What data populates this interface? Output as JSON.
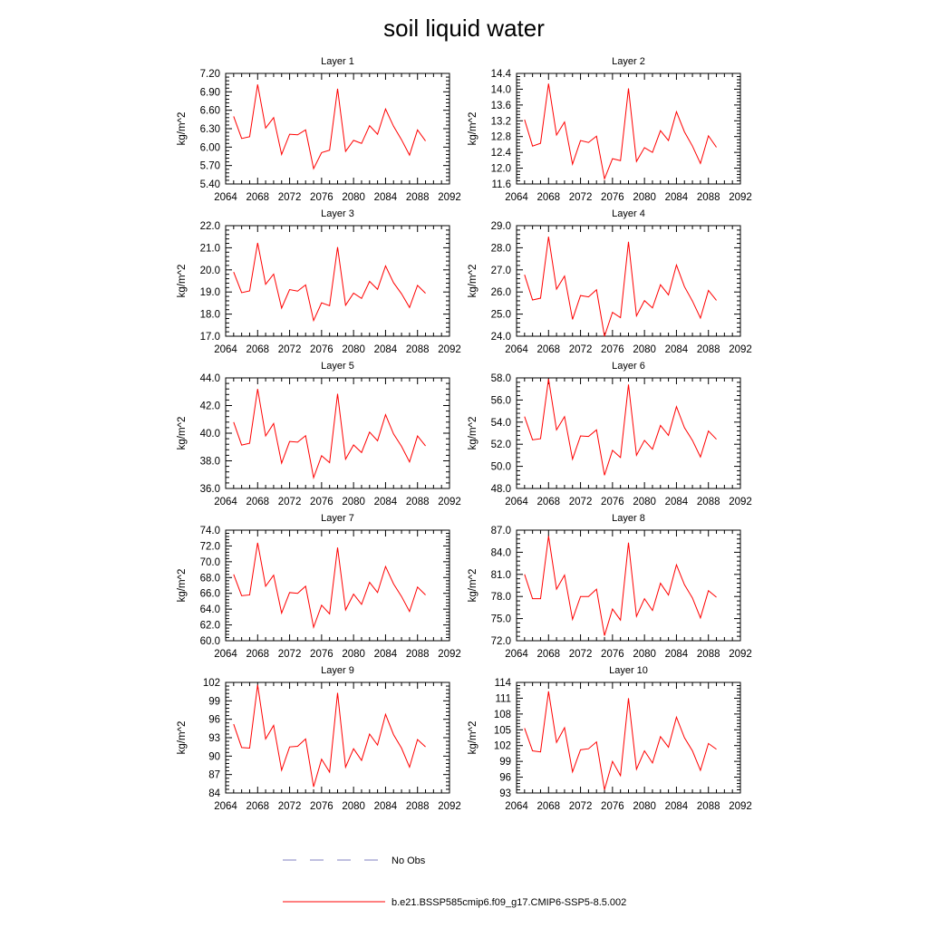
{
  "title": "soil liquid water",
  "legend": {
    "obs": {
      "label": "No Obs",
      "color": "#8080c0"
    },
    "model": {
      "label": "b.e21.BSSP585cmip6.f09_g17.CMIP6-SSP5-8.5.002",
      "color": "#ff0000"
    }
  },
  "chart_data": [
    {
      "type": "line",
      "title": "Layer 1",
      "ylabel": "kg/m^2",
      "xlim": [
        2064,
        2092
      ],
      "xticks": [
        "2064",
        "2068",
        "2072",
        "2076",
        "2080",
        "2084",
        "2088",
        "2092"
      ],
      "ylim": [
        5.4,
        7.2
      ],
      "yticks": [
        "5.40",
        "5.70",
        "6.00",
        "6.30",
        "6.60",
        "6.90",
        "7.20"
      ],
      "series": [
        {
          "color": "#ff0000",
          "x": [
            2065,
            2066,
            2067,
            2068,
            2069,
            2070,
            2071,
            2072,
            2073,
            2074,
            2075,
            2076,
            2077,
            2078,
            2079,
            2080,
            2081,
            2082,
            2083,
            2084,
            2085,
            2086,
            2087,
            2088,
            2089
          ],
          "y": [
            6.5,
            6.14,
            6.17,
            7.02,
            6.31,
            6.48,
            5.88,
            6.21,
            6.2,
            6.28,
            5.65,
            5.91,
            5.95,
            6.95,
            5.93,
            6.11,
            6.06,
            6.35,
            6.21,
            6.62,
            6.34,
            6.12,
            5.87,
            6.28,
            6.1
          ]
        }
      ]
    },
    {
      "type": "line",
      "title": "Layer 2",
      "ylabel": "kg/m^2",
      "xlim": [
        2064,
        2092
      ],
      "xticks": [
        "2064",
        "2068",
        "2072",
        "2076",
        "2080",
        "2084",
        "2088",
        "2092"
      ],
      "ylim": [
        11.6,
        14.4
      ],
      "yticks": [
        "11.6",
        "12.0",
        "12.4",
        "12.8",
        "13.2",
        "13.6",
        "14.0",
        "14.4"
      ],
      "series": [
        {
          "color": "#ff0000",
          "x": [
            2065,
            2066,
            2067,
            2068,
            2069,
            2070,
            2071,
            2072,
            2073,
            2074,
            2075,
            2076,
            2077,
            2078,
            2079,
            2080,
            2081,
            2082,
            2083,
            2084,
            2085,
            2086,
            2087,
            2088,
            2089
          ],
          "y": [
            13.23,
            12.56,
            12.63,
            14.14,
            12.84,
            13.17,
            12.1,
            12.7,
            12.65,
            12.81,
            11.73,
            12.24,
            12.19,
            14.02,
            12.17,
            12.52,
            12.4,
            12.95,
            12.7,
            13.43,
            12.92,
            12.56,
            12.12,
            12.82,
            12.53
          ]
        }
      ]
    },
    {
      "type": "line",
      "title": "Layer 3",
      "ylabel": "kg/m^2",
      "xlim": [
        2064,
        2092
      ],
      "xticks": [
        "2064",
        "2068",
        "2072",
        "2076",
        "2080",
        "2084",
        "2088",
        "2092"
      ],
      "ylim": [
        17.0,
        22.0
      ],
      "yticks": [
        "17.0",
        "18.0",
        "19.0",
        "20.0",
        "21.0",
        "22.0"
      ],
      "series": [
        {
          "color": "#ff0000",
          "x": [
            2065,
            2066,
            2067,
            2068,
            2069,
            2070,
            2071,
            2072,
            2073,
            2074,
            2075,
            2076,
            2077,
            2078,
            2079,
            2080,
            2081,
            2082,
            2083,
            2084,
            2085,
            2086,
            2087,
            2088,
            2089
          ],
          "y": [
            19.9,
            18.97,
            19.05,
            21.22,
            19.35,
            19.81,
            18.27,
            19.11,
            19.04,
            19.32,
            17.71,
            18.51,
            18.38,
            21.03,
            18.4,
            18.95,
            18.71,
            19.48,
            19.12,
            20.18,
            19.42,
            18.92,
            18.3,
            19.3,
            18.94
          ]
        }
      ]
    },
    {
      "type": "line",
      "title": "Layer 4",
      "ylabel": "kg/m^2",
      "xlim": [
        2064,
        2092
      ],
      "xticks": [
        "2064",
        "2068",
        "2072",
        "2076",
        "2080",
        "2084",
        "2088",
        "2092"
      ],
      "ylim": [
        24.0,
        29.0
      ],
      "yticks": [
        "24.0",
        "25.0",
        "26.0",
        "27.0",
        "28.0",
        "29.0"
      ],
      "series": [
        {
          "color": "#ff0000",
          "x": [
            2065,
            2066,
            2067,
            2068,
            2069,
            2070,
            2071,
            2072,
            2073,
            2074,
            2075,
            2076,
            2077,
            2078,
            2079,
            2080,
            2081,
            2082,
            2083,
            2084,
            2085,
            2086,
            2087,
            2088,
            2089
          ],
          "y": [
            26.78,
            25.64,
            25.72,
            28.5,
            26.13,
            26.72,
            24.76,
            25.84,
            25.78,
            26.1,
            24.0,
            25.08,
            24.84,
            28.27,
            24.92,
            25.61,
            25.28,
            26.33,
            25.87,
            27.22,
            26.24,
            25.59,
            24.82,
            26.07,
            25.62
          ]
        }
      ]
    },
    {
      "type": "line",
      "title": "Layer 5",
      "ylabel": "kg/m^2",
      "xlim": [
        2064,
        2092
      ],
      "xticks": [
        "2064",
        "2068",
        "2072",
        "2076",
        "2080",
        "2084",
        "2088",
        "2092"
      ],
      "ylim": [
        36.0,
        44.0
      ],
      "yticks": [
        "36.0",
        "38.0",
        "40.0",
        "42.0",
        "44.0"
      ],
      "series": [
        {
          "color": "#ff0000",
          "x": [
            2065,
            2066,
            2067,
            2068,
            2069,
            2070,
            2071,
            2072,
            2073,
            2074,
            2075,
            2076,
            2077,
            2078,
            2079,
            2080,
            2081,
            2082,
            2083,
            2084,
            2085,
            2086,
            2087,
            2088,
            2089
          ],
          "y": [
            40.8,
            39.14,
            39.27,
            43.2,
            39.8,
            40.7,
            37.83,
            39.4,
            39.35,
            39.82,
            36.78,
            38.37,
            37.87,
            42.85,
            38.12,
            39.15,
            38.6,
            40.08,
            39.45,
            41.34,
            39.95,
            39.05,
            37.92,
            39.8,
            39.08
          ]
        }
      ]
    },
    {
      "type": "line",
      "title": "Layer 6",
      "ylabel": "kg/m^2",
      "xlim": [
        2064,
        2092
      ],
      "xticks": [
        "2064",
        "2068",
        "2072",
        "2076",
        "2080",
        "2084",
        "2088",
        "2092"
      ],
      "ylim": [
        48.0,
        58.0
      ],
      "yticks": [
        "48.0",
        "50.0",
        "52.0",
        "54.0",
        "56.0",
        "58.0"
      ],
      "series": [
        {
          "color": "#ff0000",
          "x": [
            2065,
            2066,
            2067,
            2068,
            2069,
            2070,
            2071,
            2072,
            2073,
            2074,
            2075,
            2076,
            2077,
            2078,
            2079,
            2080,
            2081,
            2082,
            2083,
            2084,
            2085,
            2086,
            2087,
            2088,
            2089
          ],
          "y": [
            54.5,
            52.4,
            52.5,
            57.9,
            53.3,
            54.5,
            50.65,
            52.75,
            52.7,
            53.3,
            49.2,
            51.45,
            50.8,
            57.4,
            51.0,
            52.35,
            51.55,
            53.7,
            52.8,
            55.4,
            53.5,
            52.35,
            50.85,
            53.2,
            52.45
          ]
        }
      ]
    },
    {
      "type": "line",
      "title": "Layer 7",
      "ylabel": "kg/m^2",
      "xlim": [
        2064,
        2092
      ],
      "xticks": [
        "2064",
        "2068",
        "2072",
        "2076",
        "2080",
        "2084",
        "2088",
        "2092"
      ],
      "ylim": [
        60.0,
        74.0
      ],
      "yticks": [
        "60.0",
        "62.0",
        "64.0",
        "66.0",
        "68.0",
        "70.0",
        "72.0",
        "74.0"
      ],
      "series": [
        {
          "color": "#ff0000",
          "x": [
            2065,
            2066,
            2067,
            2068,
            2069,
            2070,
            2071,
            2072,
            2073,
            2074,
            2075,
            2076,
            2077,
            2078,
            2079,
            2080,
            2081,
            2082,
            2083,
            2084,
            2085,
            2086,
            2087,
            2088,
            2089
          ],
          "y": [
            68.4,
            65.7,
            65.8,
            72.4,
            66.9,
            68.3,
            63.5,
            66.1,
            66.0,
            66.9,
            61.7,
            64.5,
            63.4,
            71.8,
            63.9,
            65.9,
            64.6,
            67.4,
            66.1,
            69.4,
            67.2,
            65.6,
            63.7,
            66.8,
            65.8
          ]
        }
      ]
    },
    {
      "type": "line",
      "title": "Layer 8",
      "ylabel": "kg/m^2",
      "xlim": [
        2064,
        2092
      ],
      "xticks": [
        "2064",
        "2068",
        "2072",
        "2076",
        "2080",
        "2084",
        "2088",
        "2092"
      ],
      "ylim": [
        72.0,
        87.0
      ],
      "yticks": [
        "72.0",
        "75.0",
        "78.0",
        "81.0",
        "84.0",
        "87.0"
      ],
      "series": [
        {
          "color": "#ff0000",
          "x": [
            2065,
            2066,
            2067,
            2068,
            2069,
            2070,
            2071,
            2072,
            2073,
            2074,
            2075,
            2076,
            2077,
            2078,
            2079,
            2080,
            2081,
            2082,
            2083,
            2084,
            2085,
            2086,
            2087,
            2088,
            2089
          ],
          "y": [
            81.0,
            77.7,
            77.7,
            86.2,
            79.0,
            80.9,
            74.9,
            78.0,
            78.0,
            79.0,
            72.7,
            76.3,
            74.8,
            85.3,
            75.3,
            77.7,
            76.1,
            79.8,
            78.2,
            82.3,
            79.6,
            77.8,
            75.1,
            78.8,
            77.9
          ]
        }
      ]
    },
    {
      "type": "line",
      "title": "Layer 9",
      "ylabel": "kg/m^2",
      "xlim": [
        2064,
        2092
      ],
      "xticks": [
        "2064",
        "2068",
        "2072",
        "2076",
        "2080",
        "2084",
        "2088",
        "2092"
      ],
      "ylim": [
        84,
        102
      ],
      "yticks": [
        "84",
        "87",
        "90",
        "93",
        "96",
        "99",
        "102"
      ],
      "series": [
        {
          "color": "#ff0000",
          "x": [
            2065,
            2066,
            2067,
            2068,
            2069,
            2070,
            2071,
            2072,
            2073,
            2074,
            2075,
            2076,
            2077,
            2078,
            2079,
            2080,
            2081,
            2082,
            2083,
            2084,
            2085,
            2086,
            2087,
            2088,
            2089
          ],
          "y": [
            95.2,
            91.4,
            91.3,
            101.6,
            92.8,
            95.0,
            87.7,
            91.5,
            91.6,
            92.8,
            85.0,
            89.5,
            87.4,
            100.3,
            88.2,
            91.2,
            89.3,
            93.6,
            91.8,
            96.8,
            93.5,
            91.3,
            88.2,
            92.7,
            91.5
          ]
        }
      ]
    },
    {
      "type": "line",
      "title": "Layer 10",
      "ylabel": "kg/m^2",
      "xlim": [
        2064,
        2092
      ],
      "xticks": [
        "2064",
        "2068",
        "2072",
        "2076",
        "2080",
        "2084",
        "2088",
        "2092"
      ],
      "ylim": [
        93,
        114
      ],
      "yticks": [
        "93",
        "96",
        "99",
        "102",
        "105",
        "108",
        "111",
        "114"
      ],
      "series": [
        {
          "color": "#ff0000",
          "x": [
            2065,
            2066,
            2067,
            2068,
            2069,
            2070,
            2071,
            2072,
            2073,
            2074,
            2075,
            2076,
            2077,
            2078,
            2079,
            2080,
            2081,
            2082,
            2083,
            2084,
            2085,
            2086,
            2087,
            2088,
            2089
          ],
          "y": [
            105.3,
            101.0,
            100.8,
            112.3,
            102.6,
            105.4,
            97.0,
            101.2,
            101.4,
            102.7,
            93.6,
            99.0,
            96.3,
            111.0,
            97.5,
            101.0,
            98.7,
            103.7,
            101.7,
            107.4,
            103.5,
            101.0,
            97.3,
            102.4,
            101.3
          ]
        }
      ]
    }
  ]
}
